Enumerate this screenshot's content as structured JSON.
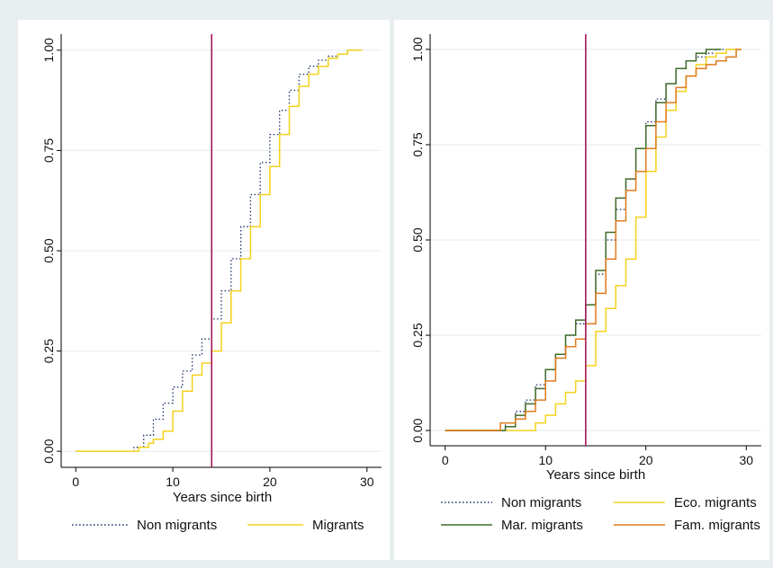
{
  "chart_data": [
    {
      "type": "line",
      "title": "",
      "xlabel": "Years since birth",
      "ylabel": "",
      "xlim": [
        -1.5,
        31.5
      ],
      "ylim": [
        -0.04,
        1.04
      ],
      "xticks": [
        "0",
        "10",
        "20",
        "30"
      ],
      "yticks": [
        "0.00",
        "0.25",
        "0.50",
        "0.75",
        "1.00"
      ],
      "grid": "horizontal",
      "legend_position": "bottom",
      "vline": 14,
      "series": [
        {
          "name": "Non migrants",
          "color": "#1a2f6b",
          "dash": "dotted",
          "points": [
            [
              0,
              0
            ],
            [
              5,
              0
            ],
            [
              6,
              0.01
            ],
            [
              7,
              0.04
            ],
            [
              8,
              0.08
            ],
            [
              9,
              0.12
            ],
            [
              10,
              0.16
            ],
            [
              11,
              0.2
            ],
            [
              12,
              0.24
            ],
            [
              13,
              0.28
            ],
            [
              14,
              0.33
            ],
            [
              15,
              0.4
            ],
            [
              16,
              0.48
            ],
            [
              17,
              0.56
            ],
            [
              18,
              0.64
            ],
            [
              19,
              0.72
            ],
            [
              20,
              0.79
            ],
            [
              21,
              0.85
            ],
            [
              22,
              0.9
            ],
            [
              23,
              0.94
            ],
            [
              24,
              0.96
            ],
            [
              25,
              0.975
            ],
            [
              26,
              0.985
            ],
            [
              27,
              0.99
            ],
            [
              28,
              1.0
            ],
            [
              29.5,
              1.0
            ]
          ]
        },
        {
          "name": "Migrants",
          "color": "#f5d21c",
          "dash": "solid",
          "points": [
            [
              0,
              0
            ],
            [
              5.5,
              0
            ],
            [
              6.5,
              0.01
            ],
            [
              7.5,
              0.02
            ],
            [
              8,
              0.03
            ],
            [
              9,
              0.05
            ],
            [
              10,
              0.1
            ],
            [
              11,
              0.15
            ],
            [
              12,
              0.19
            ],
            [
              13,
              0.22
            ],
            [
              14,
              0.25
            ],
            [
              15,
              0.32
            ],
            [
              16,
              0.4
            ],
            [
              17,
              0.48
            ],
            [
              18,
              0.56
            ],
            [
              19,
              0.64
            ],
            [
              20,
              0.71
            ],
            [
              21,
              0.79
            ],
            [
              22,
              0.86
            ],
            [
              23,
              0.91
            ],
            [
              24,
              0.94
            ],
            [
              25,
              0.96
            ],
            [
              26,
              0.98
            ],
            [
              27,
              0.99
            ],
            [
              28,
              1.0
            ],
            [
              29.5,
              1.0
            ]
          ]
        }
      ]
    },
    {
      "type": "line",
      "title": "",
      "xlabel": "Years since birth",
      "ylabel": "",
      "xlim": [
        -1.5,
        31.5
      ],
      "ylim": [
        -0.04,
        1.04
      ],
      "xticks": [
        "0",
        "10",
        "20",
        "30"
      ],
      "yticks": [
        "0.00",
        "0.25",
        "0.50",
        "0.75",
        "1.00"
      ],
      "grid": "horizontal",
      "legend_position": "bottom",
      "vline": 14,
      "series": [
        {
          "name": "Non migrants",
          "color": "#1a2f6b",
          "dash": "dotted",
          "points": [
            [
              0,
              0
            ],
            [
              5,
              0
            ],
            [
              6,
              0.02
            ],
            [
              7,
              0.05
            ],
            [
              8,
              0.08
            ],
            [
              9,
              0.12
            ],
            [
              10,
              0.16
            ],
            [
              11,
              0.2
            ],
            [
              12,
              0.25
            ],
            [
              13,
              0.28
            ],
            [
              14,
              0.33
            ],
            [
              15,
              0.41
            ],
            [
              16,
              0.5
            ],
            [
              17,
              0.58
            ],
            [
              18,
              0.66
            ],
            [
              19,
              0.74
            ],
            [
              20,
              0.81
            ],
            [
              21,
              0.87
            ],
            [
              22,
              0.91
            ],
            [
              23,
              0.95
            ],
            [
              24,
              0.97
            ],
            [
              25,
              0.98
            ],
            [
              26,
              0.99
            ],
            [
              27,
              1.0
            ],
            [
              29.5,
              1.0
            ]
          ]
        },
        {
          "name": "Eco. migrants",
          "color": "#f5d21c",
          "dash": "solid",
          "points": [
            [
              0,
              0
            ],
            [
              8,
              0
            ],
            [
              9,
              0.02
            ],
            [
              10,
              0.04
            ],
            [
              11,
              0.07
            ],
            [
              12,
              0.1
            ],
            [
              13,
              0.13
            ],
            [
              14,
              0.17
            ],
            [
              15,
              0.26
            ],
            [
              16,
              0.32
            ],
            [
              17,
              0.38
            ],
            [
              18,
              0.45
            ],
            [
              19,
              0.56
            ],
            [
              20,
              0.68
            ],
            [
              21,
              0.77
            ],
            [
              22,
              0.84
            ],
            [
              23,
              0.89
            ],
            [
              24,
              0.93
            ],
            [
              25,
              0.96
            ],
            [
              26,
              0.98
            ],
            [
              27,
              0.99
            ],
            [
              28,
              1.0
            ],
            [
              29.5,
              1.0
            ]
          ]
        },
        {
          "name": "Mar. migrants",
          "color": "#3f6b2a",
          "dash": "solid",
          "points": [
            [
              0,
              0
            ],
            [
              5.5,
              0
            ],
            [
              6,
              0.01
            ],
            [
              7,
              0.04
            ],
            [
              8,
              0.07
            ],
            [
              9,
              0.11
            ],
            [
              10,
              0.16
            ],
            [
              11,
              0.2
            ],
            [
              12,
              0.25
            ],
            [
              13,
              0.29
            ],
            [
              14,
              0.33
            ],
            [
              15,
              0.42
            ],
            [
              16,
              0.52
            ],
            [
              17,
              0.61
            ],
            [
              18,
              0.66
            ],
            [
              19,
              0.74
            ],
            [
              20,
              0.8
            ],
            [
              21,
              0.86
            ],
            [
              22,
              0.91
            ],
            [
              23,
              0.95
            ],
            [
              24,
              0.97
            ],
            [
              25,
              0.99
            ],
            [
              26,
              1.0
            ],
            [
              27.5,
              1.0
            ]
          ]
        },
        {
          "name": "Fam. migrants",
          "color": "#e07b1c",
          "dash": "solid",
          "points": [
            [
              0,
              0
            ],
            [
              5,
              0
            ],
            [
              5.5,
              0.02
            ],
            [
              7,
              0.03
            ],
            [
              8,
              0.05
            ],
            [
              9,
              0.08
            ],
            [
              10,
              0.13
            ],
            [
              11,
              0.19
            ],
            [
              12,
              0.22
            ],
            [
              13,
              0.24
            ],
            [
              14,
              0.28
            ],
            [
              15,
              0.36
            ],
            [
              16,
              0.45
            ],
            [
              17,
              0.55
            ],
            [
              18,
              0.63
            ],
            [
              19,
              0.68
            ],
            [
              20,
              0.74
            ],
            [
              21,
              0.81
            ],
            [
              22,
              0.86
            ],
            [
              23,
              0.9
            ],
            [
              24,
              0.93
            ],
            [
              25,
              0.95
            ],
            [
              26,
              0.96
            ],
            [
              27,
              0.97
            ],
            [
              28,
              0.98
            ],
            [
              29,
              1.0
            ],
            [
              29.5,
              1.0
            ]
          ]
        }
      ]
    }
  ]
}
